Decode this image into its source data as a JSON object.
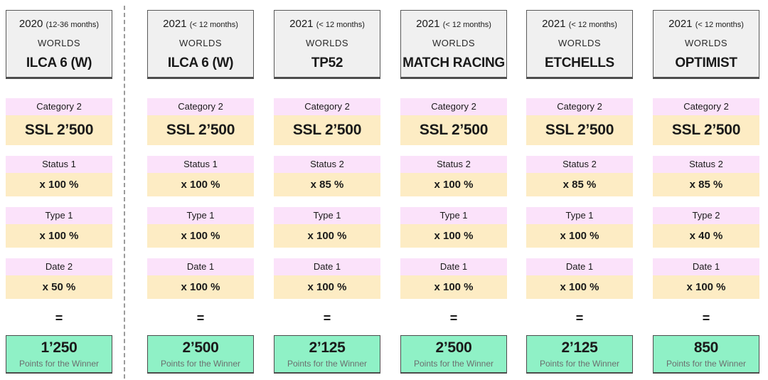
{
  "page": {
    "equals_label": "=",
    "colors": {
      "label_pink": "#fbe2fa",
      "value_yellow": "#fdecc4",
      "result_green": "#8ff1c6",
      "header_gray": "#f0f0f0"
    }
  },
  "columns": [
    {
      "year": "2020",
      "qualifier": "(12-36 months)",
      "level": "WORLDS",
      "event": "ILCA 6 (W)",
      "rows": [
        {
          "label": "Category 2",
          "value": "SSL 2’500"
        },
        {
          "label": "Status 1",
          "value": "x 100 %"
        },
        {
          "label": "Type 1",
          "value": "x 100 %"
        },
        {
          "label": "Date 2",
          "value": "x 50 %"
        }
      ],
      "result": {
        "points": "1’250",
        "caption": "Points for the Winner"
      }
    },
    {
      "year": "2021",
      "qualifier": "(< 12 months)",
      "level": "WORLDS",
      "event": "ILCA 6 (W)",
      "rows": [
        {
          "label": "Category 2",
          "value": "SSL 2’500"
        },
        {
          "label": "Status 1",
          "value": "x 100 %"
        },
        {
          "label": "Type 1",
          "value": "x 100 %"
        },
        {
          "label": "Date 1",
          "value": "x 100 %"
        }
      ],
      "result": {
        "points": "2’500",
        "caption": "Points for the Winner"
      }
    },
    {
      "year": "2021",
      "qualifier": "(< 12 months)",
      "level": "WORLDS",
      "event": "TP52",
      "rows": [
        {
          "label": "Category 2",
          "value": "SSL 2’500"
        },
        {
          "label": "Status 2",
          "value": "x 85 %"
        },
        {
          "label": "Type 1",
          "value": "x 100 %"
        },
        {
          "label": "Date 1",
          "value": "x 100 %"
        }
      ],
      "result": {
        "points": "2’125",
        "caption": "Points for the Winner"
      }
    },
    {
      "year": "2021",
      "qualifier": "(< 12 months)",
      "level": "WORLDS",
      "event": "MATCH RACING",
      "rows": [
        {
          "label": "Category 2",
          "value": "SSL 2’500"
        },
        {
          "label": "Status 2",
          "value": "x 100 %"
        },
        {
          "label": "Type 1",
          "value": "x 100 %"
        },
        {
          "label": "Date 1",
          "value": "x 100 %"
        }
      ],
      "result": {
        "points": "2’500",
        "caption": "Points for the Winner"
      }
    },
    {
      "year": "2021",
      "qualifier": "(< 12 months)",
      "level": "WORLDS",
      "event": "ETCHELLS",
      "rows": [
        {
          "label": "Category 2",
          "value": "SSL 2’500"
        },
        {
          "label": "Status 2",
          "value": "x 85 %"
        },
        {
          "label": "Type 1",
          "value": "x 100 %"
        },
        {
          "label": "Date 1",
          "value": "x 100 %"
        }
      ],
      "result": {
        "points": "2’125",
        "caption": "Points for the Winner"
      }
    },
    {
      "year": "2021",
      "qualifier": "(< 12 months)",
      "level": "WORLDS",
      "event": "OPTIMIST",
      "rows": [
        {
          "label": "Category 2",
          "value": "SSL 2’500"
        },
        {
          "label": "Status 2",
          "value": "x 85 %"
        },
        {
          "label": "Type 2",
          "value": "x 40 %"
        },
        {
          "label": "Date 1",
          "value": "x 100 %"
        }
      ],
      "result": {
        "points": "850",
        "caption": "Points for the Winner"
      }
    }
  ]
}
